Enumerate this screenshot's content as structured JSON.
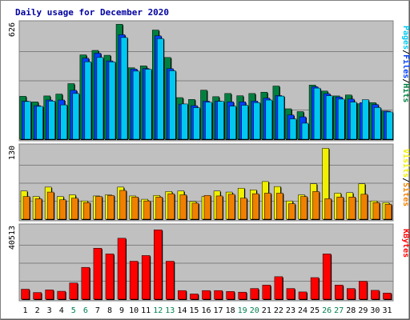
{
  "chart_data": {
    "type": "bar",
    "title": "Daily usage for December 2020",
    "categories": [
      "1",
      "2",
      "3",
      "4",
      "5",
      "6",
      "7",
      "8",
      "9",
      "10",
      "11",
      "12",
      "13",
      "14",
      "15",
      "16",
      "17",
      "18",
      "19",
      "20",
      "21",
      "22",
      "23",
      "24",
      "25",
      "26",
      "27",
      "28",
      "29",
      "30",
      "31"
    ],
    "weekend_days": [
      "5",
      "6",
      "12",
      "13",
      "19",
      "20",
      "26",
      "27"
    ],
    "panels": [
      {
        "id": "pages-files-hits",
        "ymax_label": "626",
        "ylim": [
          0,
          626
        ],
        "legend_words": [
          {
            "text": "Pages",
            "color": "#00c8f0"
          },
          {
            "text": "Files",
            "color": "#0040ff"
          },
          {
            "text": "Hits",
            "color": "#008040"
          }
        ],
        "series": [
          {
            "name": "Hits",
            "color": "#008040",
            "values": [
              230,
              200,
              232,
              242,
              298,
              452,
              476,
              450,
              616,
              383,
              393,
              585,
              438,
              223,
              213,
              263,
              228,
              245,
              233,
              245,
              252,
              285,
              163,
              148,
              290,
              258,
              232,
              237,
              190,
              196,
              151
            ]
          },
          {
            "name": "Files",
            "color": "#0040ff",
            "values": [
              204,
              180,
              210,
              210,
              262,
              434,
              461,
              420,
              560,
              376,
              379,
              554,
              378,
              188,
              180,
              204,
              204,
              200,
              200,
              204,
              220,
              234,
              130,
              120,
              281,
              244,
              226,
              215,
              196,
              186,
              150
            ]
          },
          {
            "name": "Pages",
            "color": "#00c8f0",
            "values": [
              202,
              176,
              204,
              184,
              245,
              415,
              438,
              414,
              545,
              365,
              375,
              539,
              367,
              189,
              169,
              198,
              203,
              177,
              182,
              196,
              210,
              231,
              109,
              86,
              274,
              233,
              215,
              199,
              212,
              170,
              146
            ]
          }
        ]
      },
      {
        "id": "visits-sites",
        "ymax_label": "130",
        "ylim": [
          0,
          130
        ],
        "legend_words": [
          {
            "text": "Visits",
            "color": "#f0f000"
          },
          {
            "text": "Sites",
            "color": "#f08000"
          }
        ],
        "series": [
          {
            "name": "Visits",
            "color": "#f0f000",
            "values": [
              51,
              41,
              58,
              41,
              44,
              33,
              42,
              44,
              58,
              42,
              36,
              43,
              50,
              51,
              32,
              41,
              51,
              49,
              56,
              53,
              68,
              59,
              33,
              44,
              64,
              128,
              47,
              48,
              64,
              33,
              30
            ]
          },
          {
            "name": "Sites",
            "color": "#f08000",
            "values": [
              41,
              37,
              49,
              35,
              38,
              30,
              41,
              43,
              52,
              40,
              33,
              40,
              46,
              44,
              29,
              43,
              42,
              45,
              38,
              46,
              47,
              47,
              28,
              41,
              50,
              37,
              40,
              40,
              45,
              30,
              27
            ]
          }
        ]
      },
      {
        "id": "kbytes",
        "ymax_label": "40513",
        "ylim": [
          0,
          40513
        ],
        "legend_words": [
          {
            "text": "KBytes",
            "color": "#ff0000"
          }
        ],
        "series": [
          {
            "name": "KBytes",
            "color": "#ff0000",
            "values": [
              5632,
              3776,
              5248,
              4480,
              9152,
              17920,
              28672,
              25472,
              34304,
              21376,
              24576,
              39040,
              21376,
              4864,
              2944,
              4864,
              4864,
              4352,
              3968,
              6016,
              7936,
              12672,
              6016,
              4096,
              12160,
              25472,
              7936,
              6016,
              10112,
              4992,
              3456
            ]
          }
        ]
      }
    ],
    "colors": {
      "plot_bg": "#c0c0c0",
      "page_bg": "#ffffff",
      "frame": "#808080",
      "title": "#0000a0",
      "weekday_label": "#000000",
      "weekend_label": "#00804f",
      "shadow": "#000000"
    }
  }
}
